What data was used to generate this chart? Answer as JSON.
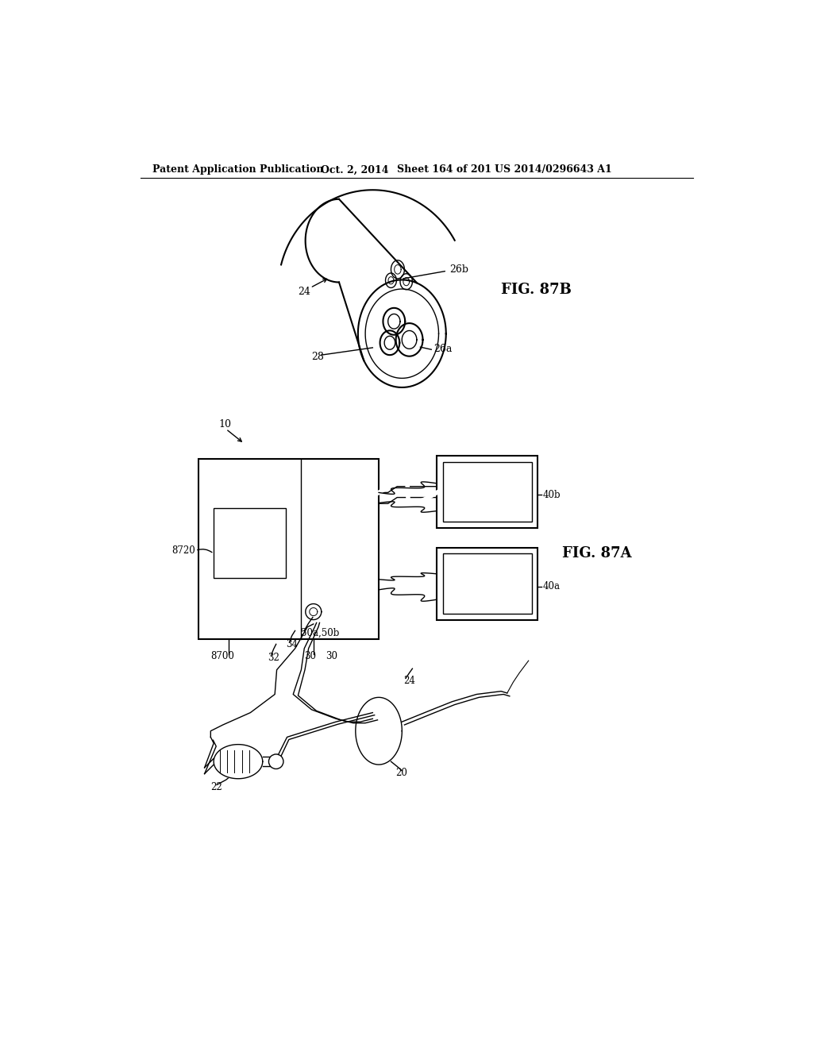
{
  "bg_color": "#ffffff",
  "header_text": "Patent Application Publication",
  "header_date": "Oct. 2, 2014",
  "header_sheet": "Sheet 164 of 201",
  "header_patent": "US 2014/0296643 A1",
  "fig87b_label": "FIG. 87B",
  "fig87a_label": "FIG. 87A",
  "label_10": "10",
  "label_24_top": "24",
  "label_26a": "26a",
  "label_26b": "26b",
  "label_28": "28",
  "label_8720": "8720",
  "label_8700": "8700",
  "label_30": "30",
  "label_32": "32",
  "label_34": "34",
  "label_40a": "40a",
  "label_40b": "40b",
  "label_50a50b": "50a,50b",
  "label_24_bot": "24",
  "label_20": "20",
  "label_22": "22"
}
